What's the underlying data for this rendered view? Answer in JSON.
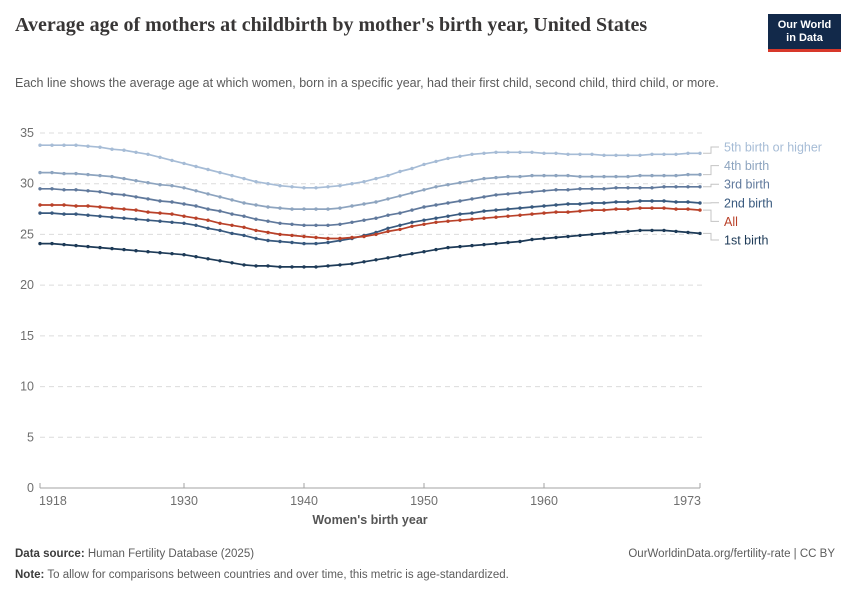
{
  "header": {
    "title": "Average age of mothers at childbirth by mother's birth year, United States",
    "subtitle": "Each line shows the average age at which women, born in a specific year, had their first child, second child, third child, or more.",
    "logo": {
      "line1": "Our World",
      "line2": "in Data"
    }
  },
  "chart_data": {
    "type": "line",
    "title": "Average age of mothers at childbirth by mother's birth year, United States",
    "xlabel": "Women's birth year",
    "ylabel": "",
    "ylim": [
      0,
      35
    ],
    "grid": true,
    "legend_position": "right",
    "xticks": [
      1918,
      1930,
      1940,
      1950,
      1960,
      1973
    ],
    "yticks": [
      0,
      5,
      10,
      15,
      20,
      25,
      30,
      35
    ],
    "x": [
      1918,
      1919,
      1920,
      1921,
      1922,
      1923,
      1924,
      1925,
      1926,
      1927,
      1928,
      1929,
      1930,
      1931,
      1932,
      1933,
      1934,
      1935,
      1936,
      1937,
      1938,
      1939,
      1940,
      1941,
      1942,
      1943,
      1944,
      1945,
      1946,
      1947,
      1948,
      1949,
      1950,
      1951,
      1952,
      1953,
      1954,
      1955,
      1956,
      1957,
      1958,
      1959,
      1960,
      1961,
      1962,
      1963,
      1964,
      1965,
      1966,
      1967,
      1968,
      1969,
      1970,
      1971,
      1972,
      1973
    ],
    "series": [
      {
        "name": "5th birth or higher",
        "color": "#a6bcd6",
        "values": [
          33.8,
          33.8,
          33.8,
          33.8,
          33.7,
          33.6,
          33.4,
          33.3,
          33.1,
          32.9,
          32.6,
          32.3,
          32.0,
          31.7,
          31.4,
          31.1,
          30.8,
          30.5,
          30.2,
          30.0,
          29.8,
          29.7,
          29.6,
          29.6,
          29.7,
          29.8,
          30.0,
          30.2,
          30.5,
          30.8,
          31.2,
          31.5,
          31.9,
          32.2,
          32.5,
          32.7,
          32.9,
          33.0,
          33.1,
          33.1,
          33.1,
          33.1,
          33.0,
          33.0,
          32.9,
          32.9,
          32.9,
          32.8,
          32.8,
          32.8,
          32.8,
          32.9,
          32.9,
          32.9,
          33.0,
          33.0
        ]
      },
      {
        "name": "4th birth",
        "color": "#8da4bf",
        "values": [
          31.1,
          31.1,
          31.0,
          31.0,
          30.9,
          30.8,
          30.7,
          30.5,
          30.3,
          30.1,
          29.9,
          29.8,
          29.6,
          29.3,
          29.0,
          28.7,
          28.4,
          28.1,
          27.9,
          27.7,
          27.6,
          27.5,
          27.5,
          27.5,
          27.5,
          27.6,
          27.8,
          28.0,
          28.2,
          28.5,
          28.8,
          29.1,
          29.4,
          29.7,
          29.9,
          30.1,
          30.3,
          30.5,
          30.6,
          30.7,
          30.7,
          30.8,
          30.8,
          30.8,
          30.8,
          30.7,
          30.7,
          30.7,
          30.7,
          30.7,
          30.8,
          30.8,
          30.8,
          30.8,
          30.9,
          30.9
        ]
      },
      {
        "name": "3rd birth",
        "color": "#60799c",
        "values": [
          29.5,
          29.5,
          29.4,
          29.4,
          29.3,
          29.2,
          29.0,
          28.9,
          28.7,
          28.5,
          28.3,
          28.2,
          28.0,
          27.8,
          27.5,
          27.3,
          27.0,
          26.8,
          26.5,
          26.3,
          26.1,
          26.0,
          25.9,
          25.9,
          25.9,
          26.0,
          26.2,
          26.4,
          26.6,
          26.9,
          27.1,
          27.4,
          27.7,
          27.9,
          28.1,
          28.3,
          28.5,
          28.7,
          28.9,
          29.0,
          29.1,
          29.2,
          29.3,
          29.4,
          29.4,
          29.5,
          29.5,
          29.5,
          29.6,
          29.6,
          29.6,
          29.6,
          29.7,
          29.7,
          29.7,
          29.7
        ]
      },
      {
        "name": "2nd birth",
        "color": "#38597e",
        "values": [
          27.1,
          27.1,
          27.0,
          27.0,
          26.9,
          26.8,
          26.7,
          26.6,
          26.5,
          26.4,
          26.3,
          26.2,
          26.1,
          25.9,
          25.6,
          25.4,
          25.1,
          24.9,
          24.6,
          24.4,
          24.3,
          24.2,
          24.1,
          24.1,
          24.2,
          24.4,
          24.6,
          24.9,
          25.2,
          25.6,
          25.9,
          26.2,
          26.4,
          26.6,
          26.8,
          27.0,
          27.1,
          27.3,
          27.4,
          27.5,
          27.6,
          27.7,
          27.8,
          27.9,
          28.0,
          28.0,
          28.1,
          28.1,
          28.2,
          28.2,
          28.3,
          28.3,
          28.3,
          28.2,
          28.2,
          28.1
        ]
      },
      {
        "name": "All",
        "color": "#b94129",
        "values": [
          27.9,
          27.9,
          27.9,
          27.8,
          27.8,
          27.7,
          27.6,
          27.5,
          27.4,
          27.2,
          27.1,
          27.0,
          26.8,
          26.6,
          26.4,
          26.1,
          25.9,
          25.7,
          25.4,
          25.2,
          25.0,
          24.9,
          24.8,
          24.7,
          24.6,
          24.6,
          24.7,
          24.8,
          25.0,
          25.3,
          25.5,
          25.8,
          26.0,
          26.2,
          26.3,
          26.4,
          26.5,
          26.6,
          26.7,
          26.8,
          26.9,
          27.0,
          27.1,
          27.2,
          27.2,
          27.3,
          27.4,
          27.4,
          27.5,
          27.5,
          27.6,
          27.6,
          27.6,
          27.5,
          27.5,
          27.4
        ]
      },
      {
        "name": "1st birth",
        "color": "#1d3a57",
        "values": [
          24.1,
          24.1,
          24.0,
          23.9,
          23.8,
          23.7,
          23.6,
          23.5,
          23.4,
          23.3,
          23.2,
          23.1,
          23.0,
          22.8,
          22.6,
          22.4,
          22.2,
          22.0,
          21.9,
          21.9,
          21.8,
          21.8,
          21.8,
          21.8,
          21.9,
          22.0,
          22.1,
          22.3,
          22.5,
          22.7,
          22.9,
          23.1,
          23.3,
          23.5,
          23.7,
          23.8,
          23.9,
          24.0,
          24.1,
          24.2,
          24.3,
          24.5,
          24.6,
          24.7,
          24.8,
          24.9,
          25.0,
          25.1,
          25.2,
          25.3,
          25.4,
          25.4,
          25.4,
          25.3,
          25.2,
          25.1
        ]
      }
    ]
  },
  "footer": {
    "source_label": "Data source:",
    "source_text": " Human Fertility Database (2025)",
    "rights": "OurWorldinData.org/fertility-rate | CC BY",
    "note_label": "Note:",
    "note_text": " To allow for comparisons between countries and over time, this metric is age-standardized."
  }
}
